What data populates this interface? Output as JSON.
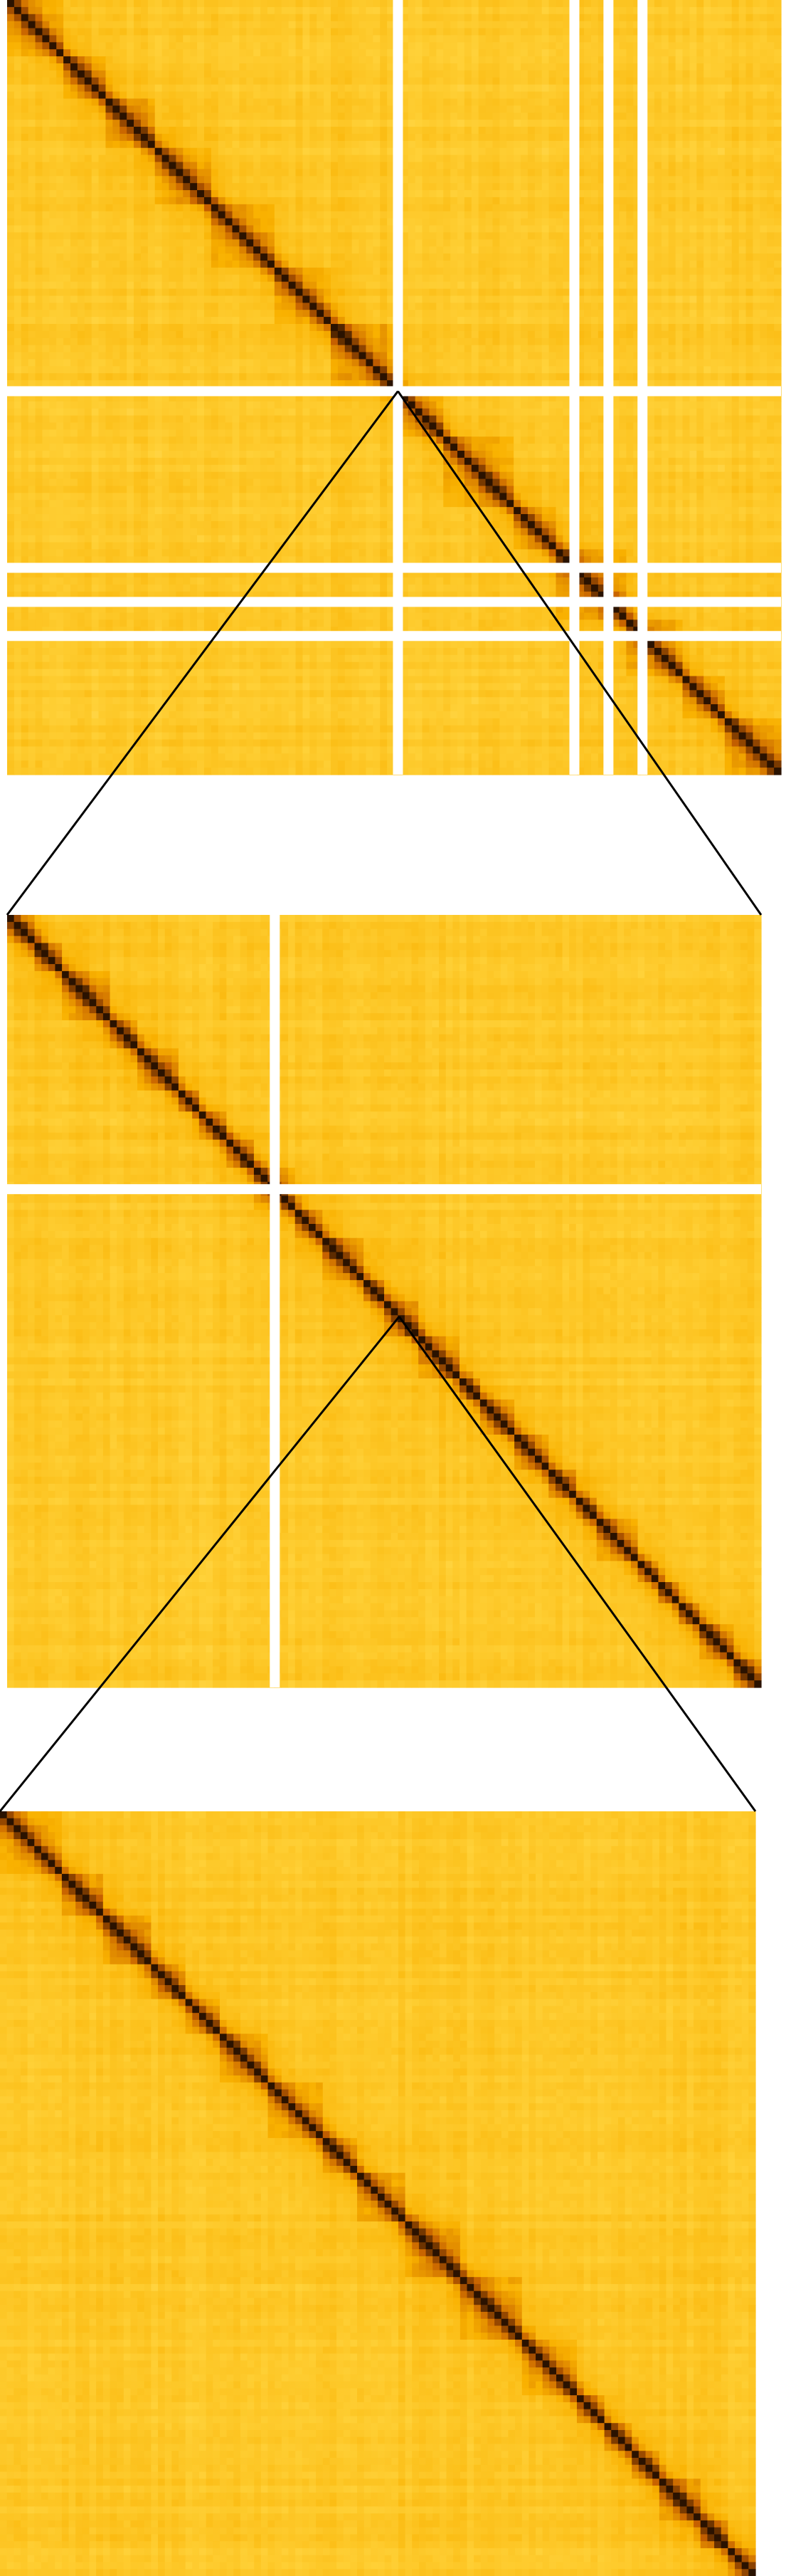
{
  "chart_data": {
    "type": "heatmap",
    "title": "",
    "xlabel": "",
    "ylabel": "",
    "colormap": {
      "name": "white-yellow-orange-brown",
      "stops": [
        "#fffbe8",
        "#ffd23a",
        "#f9b100",
        "#c55f00",
        "#2a1200"
      ],
      "background": "#ffffff",
      "gap_color": "#ffffff"
    },
    "panels": [
      {
        "id": "whole-map",
        "gap_positions": [
          0.505,
          0.733,
          0.777,
          0.821
        ],
        "zoomed_range": [
          0.505,
          1.0
        ],
        "domain_block_scale": 0.065
      },
      {
        "id": "zoom-level-1",
        "gap_positions": [
          0.355
        ],
        "zoomed_range": [
          0.52,
          1.0
        ],
        "domain_block_scale": 0.04
      },
      {
        "id": "zoom-level-2",
        "gap_positions": [],
        "zoomed_range": null,
        "domain_block_scale": 0.055
      }
    ]
  }
}
